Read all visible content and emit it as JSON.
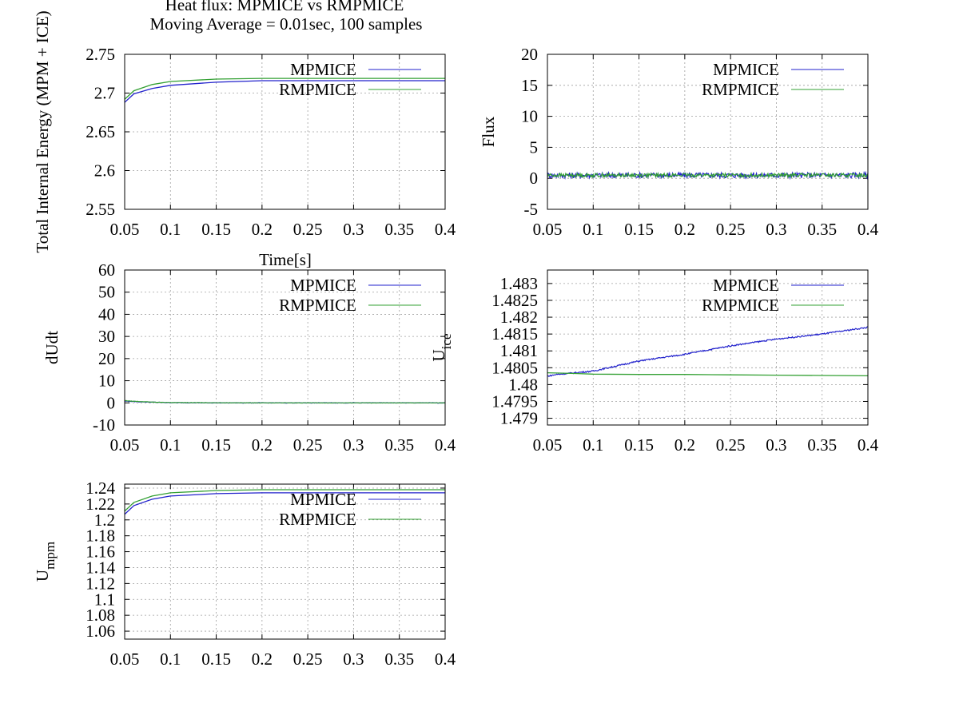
{
  "figure": {
    "title_line1": "Heat flux: MPMICE vs RMPMICE",
    "title_line2": "Moving Average = 0.01sec, 100 samples"
  },
  "colors": {
    "MPMICE": "#2222cc",
    "RMPMICE": "#33a033",
    "grid": "#a0a0a0"
  },
  "chart_data": [
    {
      "type": "line",
      "ylabel": "Total Internal Energy (MPM + ICE)",
      "xlabel": "Time[s]",
      "xlim": [
        0.05,
        0.4
      ],
      "ylim": [
        2.55,
        2.75
      ],
      "xticks": [
        "0.05",
        "0.1",
        "0.15",
        "0.2",
        "0.25",
        "0.3",
        "0.35",
        "0.4"
      ],
      "yticks": [
        "2.55",
        "2.6",
        "2.65",
        "2.7",
        "2.75"
      ],
      "grid": true,
      "legend_position": "top-right",
      "series": [
        {
          "name": "MPMICE",
          "x": [
            0.05,
            0.06,
            0.08,
            0.1,
            0.15,
            0.2,
            0.25,
            0.3,
            0.35,
            0.4
          ],
          "y": [
            2.688,
            2.699,
            2.706,
            2.71,
            2.714,
            2.716,
            2.716,
            2.716,
            2.716,
            2.716
          ]
        },
        {
          "name": "RMPMICE",
          "x": [
            0.05,
            0.06,
            0.08,
            0.1,
            0.15,
            0.2,
            0.25,
            0.3,
            0.35,
            0.4
          ],
          "y": [
            2.692,
            2.703,
            2.711,
            2.715,
            2.718,
            2.719,
            2.719,
            2.719,
            2.719,
            2.719
          ]
        }
      ]
    },
    {
      "type": "line",
      "ylabel": "Flux",
      "xlabel": "",
      "xlim": [
        0.05,
        0.4
      ],
      "ylim": [
        -5,
        20
      ],
      "xticks": [
        "0.05",
        "0.1",
        "0.15",
        "0.2",
        "0.25",
        "0.3",
        "0.35",
        "0.4"
      ],
      "yticks": [
        "-5",
        "0",
        "5",
        "10",
        "15",
        "20"
      ],
      "grid": true,
      "legend_position": "top-right",
      "series": [
        {
          "name": "MPMICE",
          "x": [
            0.05,
            0.4
          ],
          "y": [
            0.5,
            0.5
          ],
          "noise": 0.45
        },
        {
          "name": "RMPMICE",
          "x": [
            0.05,
            0.4
          ],
          "y": [
            0.5,
            0.5
          ],
          "noise": 0.3
        }
      ]
    },
    {
      "type": "line",
      "ylabel": "dUdt",
      "xlabel": "",
      "xlim": [
        0.05,
        0.4
      ],
      "ylim": [
        -10,
        60
      ],
      "xticks": [
        "0.05",
        "0.1",
        "0.15",
        "0.2",
        "0.25",
        "0.3",
        "0.35",
        "0.4"
      ],
      "yticks": [
        "-10",
        "0",
        "10",
        "20",
        "30",
        "40",
        "50",
        "60"
      ],
      "grid": true,
      "legend_position": "top-right",
      "series": [
        {
          "name": "MPMICE",
          "x": [
            0.05,
            0.06,
            0.08,
            0.1,
            0.15,
            0.2,
            0.3,
            0.4
          ],
          "y": [
            0.8,
            0.6,
            0.3,
            0.1,
            0.0,
            0.0,
            0.0,
            0.0
          ],
          "noise": 0.12
        },
        {
          "name": "RMPMICE",
          "x": [
            0.05,
            0.06,
            0.08,
            0.1,
            0.15,
            0.2,
            0.3,
            0.4
          ],
          "y": [
            1.0,
            0.7,
            0.35,
            0.15,
            0.05,
            0.0,
            0.0,
            0.0
          ],
          "noise": 0.08
        }
      ]
    },
    {
      "type": "line",
      "ylabel": "U",
      "ylabel_sub": "ice",
      "xlabel": "",
      "xlim": [
        0.05,
        0.4
      ],
      "ylim": [
        1.4788,
        1.4834
      ],
      "xticks": [
        "0.05",
        "0.1",
        "0.15",
        "0.2",
        "0.25",
        "0.3",
        "0.35",
        "0.4"
      ],
      "yticks": [
        "1.479",
        "1.4795",
        "1.48",
        "1.4805",
        "1.481",
        "1.4815",
        "1.482",
        "1.4825",
        "1.483"
      ],
      "grid": true,
      "legend_position": "top-right",
      "series": [
        {
          "name": "MPMICE",
          "x": [
            0.05,
            0.06,
            0.08,
            0.1,
            0.15,
            0.2,
            0.25,
            0.3,
            0.35,
            0.4
          ],
          "y": [
            1.48025,
            1.4803,
            1.48035,
            1.4804,
            1.4807,
            1.4809,
            1.48115,
            1.48135,
            1.4815,
            1.4817
          ],
          "noise": 2e-05
        },
        {
          "name": "RMPMICE",
          "x": [
            0.05,
            0.08,
            0.1,
            0.15,
            0.2,
            0.25,
            0.3,
            0.35,
            0.4
          ],
          "y": [
            1.48035,
            1.48033,
            1.48031,
            1.4803,
            1.4803,
            1.48029,
            1.48028,
            1.48027,
            1.48026
          ]
        }
      ]
    },
    {
      "type": "line",
      "ylabel": "U",
      "ylabel_sub": "mpm",
      "xlabel": "",
      "xlim": [
        0.05,
        0.4
      ],
      "ylim": [
        1.05,
        1.245
      ],
      "xticks": [
        "0.05",
        "0.1",
        "0.15",
        "0.2",
        "0.25",
        "0.3",
        "0.35",
        "0.4"
      ],
      "yticks": [
        "1.06",
        "1.08",
        "1.1",
        "1.12",
        "1.14",
        "1.16",
        "1.18",
        "1.2",
        "1.22",
        "1.24"
      ],
      "grid": true,
      "legend_position": "top-right",
      "series": [
        {
          "name": "MPMICE",
          "x": [
            0.05,
            0.06,
            0.08,
            0.1,
            0.15,
            0.2,
            0.25,
            0.3,
            0.35,
            0.4
          ],
          "y": [
            1.207,
            1.218,
            1.226,
            1.23,
            1.233,
            1.234,
            1.234,
            1.234,
            1.234,
            1.234
          ]
        },
        {
          "name": "RMPMICE",
          "x": [
            0.05,
            0.06,
            0.08,
            0.1,
            0.15,
            0.2,
            0.25,
            0.3,
            0.35,
            0.4
          ],
          "y": [
            1.211,
            1.222,
            1.23,
            1.234,
            1.237,
            1.238,
            1.238,
            1.238,
            1.238,
            1.238
          ]
        }
      ]
    }
  ]
}
